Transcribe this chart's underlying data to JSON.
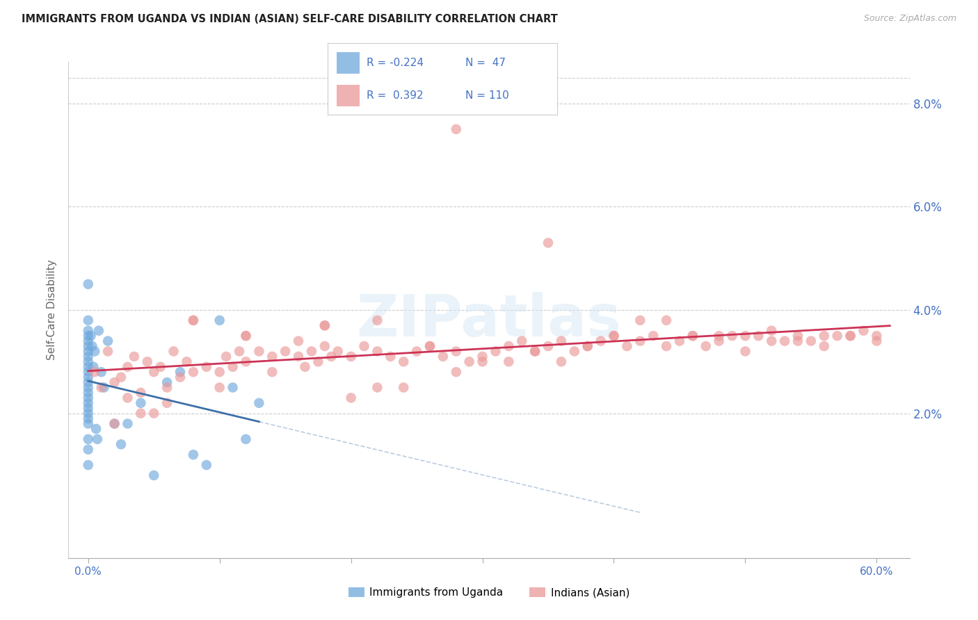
{
  "title": "IMMIGRANTS FROM UGANDA VS INDIAN (ASIAN) SELF-CARE DISABILITY CORRELATION CHART",
  "source": "Source: ZipAtlas.com",
  "ylabel": "Self-Care Disability",
  "uganda_color": "#6fa8dc",
  "indian_color": "#ea9999",
  "uganda_line_color": "#3d6fa8",
  "indian_line_color": "#cc3355",
  "watermark": "ZIPatlas",
  "tick_label_color": "#4472c4",
  "axis_tick_color": "#aaaaaa",
  "grid_color": "#cccccc",
  "uganda_x": [
    0.0,
    0.0,
    0.0,
    0.0,
    0.0,
    0.0,
    0.0,
    0.0,
    0.0,
    0.0,
    0.0,
    0.0,
    0.0,
    0.0,
    0.0,
    0.0,
    0.0,
    0.0,
    0.0,
    0.0,
    0.0,
    0.0,
    0.0,
    0.0,
    0.2,
    0.3,
    0.4,
    0.5,
    0.6,
    0.7,
    0.8,
    1.0,
    1.2,
    1.5,
    2.0,
    2.5,
    3.0,
    4.0,
    5.0,
    6.0,
    7.0,
    8.0,
    9.0,
    10.0,
    11.0,
    12.0,
    13.0
  ],
  "uganda_y": [
    4.5,
    3.8,
    3.6,
    3.5,
    3.4,
    3.3,
    3.2,
    3.1,
    3.0,
    2.9,
    2.8,
    2.7,
    2.6,
    2.5,
    2.4,
    2.3,
    2.2,
    2.1,
    2.0,
    1.9,
    1.8,
    1.5,
    1.3,
    1.0,
    3.5,
    3.3,
    2.9,
    3.2,
    1.7,
    1.5,
    3.6,
    2.8,
    2.5,
    3.4,
    1.8,
    1.4,
    1.8,
    2.2,
    0.8,
    2.6,
    2.8,
    1.2,
    1.0,
    3.8,
    2.5,
    1.5,
    2.2
  ],
  "indian_x": [
    0.5,
    1.0,
    1.5,
    2.0,
    2.5,
    3.0,
    3.5,
    4.0,
    4.5,
    5.0,
    5.5,
    6.0,
    6.5,
    7.0,
    7.5,
    8.0,
    9.0,
    10.0,
    10.5,
    11.0,
    11.5,
    12.0,
    13.0,
    14.0,
    15.0,
    16.0,
    16.5,
    17.0,
    17.5,
    18.0,
    18.5,
    19.0,
    20.0,
    21.0,
    22.0,
    23.0,
    24.0,
    25.0,
    26.0,
    27.0,
    28.0,
    29.0,
    30.0,
    31.0,
    32.0,
    33.0,
    34.0,
    35.0,
    36.0,
    37.0,
    38.0,
    39.0,
    40.0,
    41.0,
    42.0,
    43.0,
    44.0,
    45.0,
    46.0,
    47.0,
    48.0,
    49.0,
    50.0,
    51.0,
    52.0,
    53.0,
    54.0,
    55.0,
    56.0,
    57.0,
    58.0,
    59.0,
    60.0,
    3.0,
    4.0,
    6.0,
    8.0,
    10.0,
    12.0,
    14.0,
    16.0,
    18.0,
    20.0,
    22.0,
    24.0,
    26.0,
    28.0,
    30.0,
    32.0,
    34.0,
    36.0,
    38.0,
    40.0,
    42.0,
    44.0,
    46.0,
    48.0,
    50.0,
    52.0,
    54.0,
    56.0,
    58.0,
    60.0,
    35.0,
    28.0,
    22.0,
    18.0,
    12.0,
    8.0,
    5.0,
    2.0
  ],
  "indian_y": [
    2.8,
    2.5,
    3.2,
    2.6,
    2.7,
    2.9,
    3.1,
    2.4,
    3.0,
    2.8,
    2.9,
    2.5,
    3.2,
    2.7,
    3.0,
    2.8,
    2.9,
    2.8,
    3.1,
    2.9,
    3.2,
    3.0,
    3.2,
    3.1,
    3.2,
    3.1,
    2.9,
    3.2,
    3.0,
    3.3,
    3.1,
    3.2,
    3.1,
    3.3,
    3.2,
    3.1,
    3.0,
    3.2,
    3.3,
    3.1,
    3.2,
    3.0,
    3.1,
    3.2,
    3.3,
    3.4,
    3.2,
    3.3,
    3.4,
    3.2,
    3.3,
    3.4,
    3.5,
    3.3,
    3.4,
    3.5,
    3.3,
    3.4,
    3.5,
    3.3,
    3.4,
    3.5,
    3.5,
    3.5,
    3.6,
    3.4,
    3.5,
    3.4,
    3.5,
    3.5,
    3.5,
    3.6,
    3.5,
    2.3,
    2.0,
    2.2,
    3.8,
    2.5,
    3.5,
    2.8,
    3.4,
    3.7,
    2.3,
    2.5,
    2.5,
    3.3,
    2.8,
    3.0,
    3.0,
    3.2,
    3.0,
    3.3,
    3.5,
    3.8,
    3.8,
    3.5,
    3.5,
    3.2,
    3.4,
    3.4,
    3.3,
    3.5,
    3.4,
    5.3,
    7.5,
    3.8,
    3.7,
    3.5,
    3.8,
    2.0,
    1.8
  ]
}
